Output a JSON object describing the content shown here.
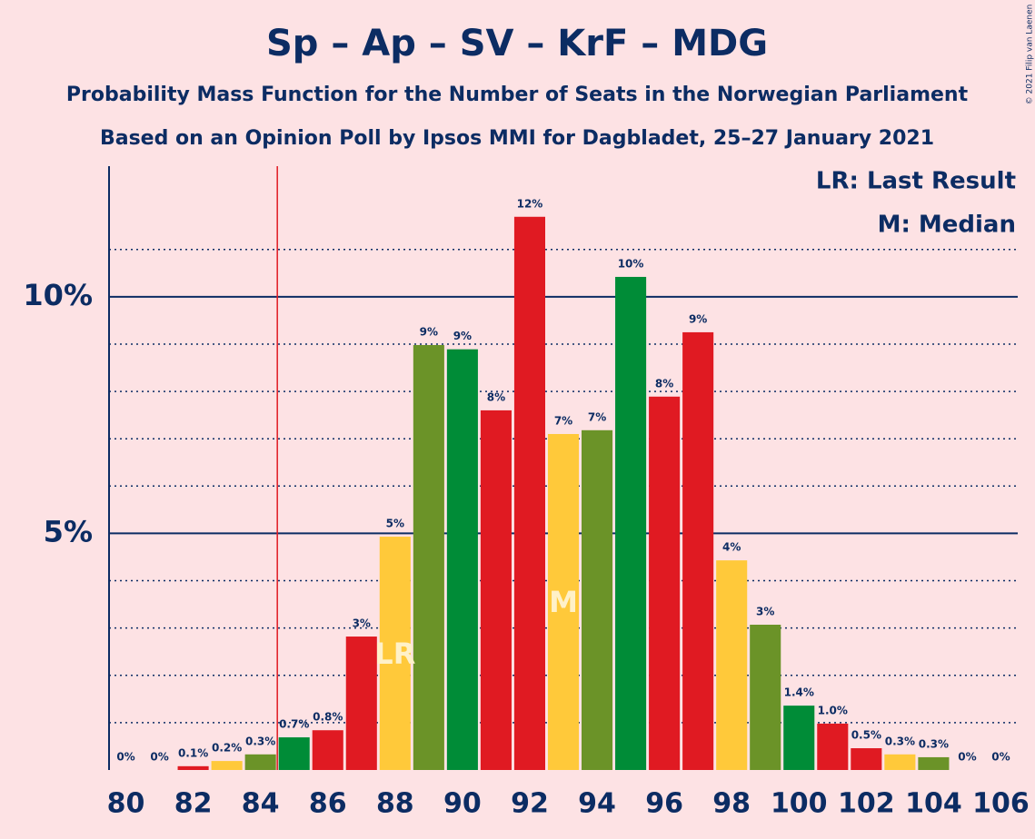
{
  "chart_data": {
    "type": "bar",
    "title": "Sp – Ap – SV – KrF – MDG",
    "subtitle": "Probability Mass Function for the Number of Seats in the Norwegian Parliament",
    "subtitle2": "Based on an Opinion Poll by Ipsos MMI for Dagbladet, 25–27 January 2021",
    "copyright": "© 2021 Filip van Laenen",
    "x": [
      80,
      81,
      82,
      83,
      84,
      85,
      86,
      87,
      88,
      89,
      90,
      91,
      92,
      93,
      94,
      95,
      96,
      97,
      98,
      99,
      100,
      101,
      102,
      103,
      104,
      105,
      106
    ],
    "values": [
      0,
      0,
      0.08,
      0.19,
      0.33,
      0.69,
      0.84,
      2.82,
      4.93,
      8.98,
      8.89,
      7.6,
      11.69,
      7.1,
      7.18,
      10.42,
      7.89,
      9.25,
      4.43,
      3.07,
      1.36,
      0.98,
      0.46,
      0.33,
      0.27,
      0,
      0
    ],
    "value_labels": [
      "0%",
      "0%",
      "0.1%",
      "0.2%",
      "0.3%",
      "0.7%",
      "0.8%",
      "3%",
      "5%",
      "9%",
      "9%",
      "8%",
      "12%",
      "7%",
      "7%",
      "10%",
      "8%",
      "9%",
      "4%",
      "3%",
      "1.4%",
      "1.0%",
      "0.5%",
      "0.3%",
      "0.3%",
      "0%",
      "0%"
    ],
    "colors": [
      "#6b9328",
      "#008c37",
      "#e01a22",
      "#ffc93a",
      "#6b9328",
      "#008c37",
      "#e01a22",
      "#e01a22",
      "#ffc93a",
      "#6b9328",
      "#008c37",
      "#e01a22",
      "#e01a22",
      "#ffc93a",
      "#6b9328",
      "#008c37",
      "#e01a22",
      "#e01a22",
      "#ffc93a",
      "#6b9328",
      "#008c37",
      "#e01a22",
      "#e01a22",
      "#ffc93a",
      "#6b9328",
      "#008c37",
      "#e01a22"
    ],
    "xlim": [
      79.5,
      106.5
    ],
    "xticks": [
      80,
      82,
      84,
      86,
      88,
      90,
      92,
      94,
      96,
      98,
      100,
      102,
      104,
      106
    ],
    "ylim": [
      0,
      12.76
    ],
    "yticks": [
      {
        "value": 5,
        "label": "5%"
      },
      {
        "value": 10,
        "label": "10%"
      }
    ],
    "minor_yticks": [
      1,
      2,
      3,
      4,
      6,
      7,
      8,
      9,
      11
    ],
    "majority_line": 84.5,
    "last_result": {
      "x": 88,
      "label": "LR"
    },
    "median": {
      "x": 93,
      "label": "M"
    },
    "legend": [
      "LR: Last Result",
      "M: Median"
    ]
  }
}
